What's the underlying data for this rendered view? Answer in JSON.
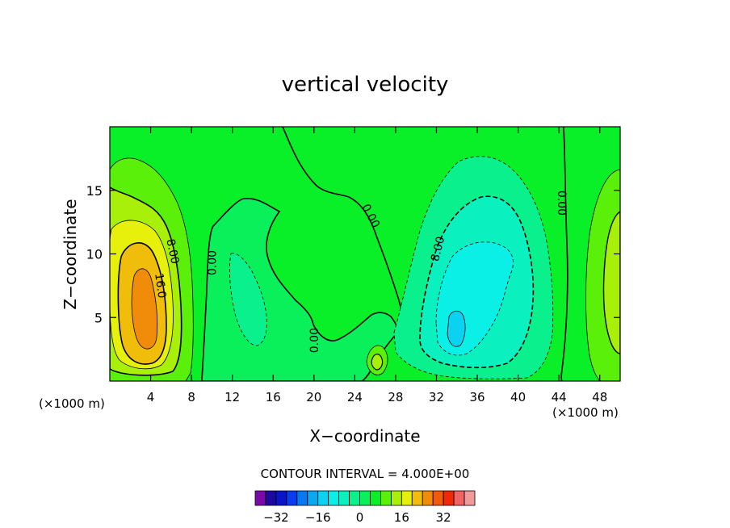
{
  "chart_data": {
    "type": "heatmap",
    "title": "vertical velocity",
    "xlabel": "X−coordinate",
    "ylabel": "Z−coordinate",
    "x_unit_left": "(×1000 m)",
    "x_unit_right": "(×1000 m)",
    "xlim": [
      0,
      50
    ],
    "ylim": [
      0,
      20
    ],
    "x_ticks": [
      {
        "value": 4,
        "label": "4"
      },
      {
        "value": 8,
        "label": "8"
      },
      {
        "value": 12,
        "label": "12"
      },
      {
        "value": 16,
        "label": "16"
      },
      {
        "value": 20,
        "label": "20"
      },
      {
        "value": 24,
        "label": "24"
      },
      {
        "value": 28,
        "label": "28"
      },
      {
        "value": 32,
        "label": "32"
      },
      {
        "value": 36,
        "label": "36"
      },
      {
        "value": 40,
        "label": "40"
      },
      {
        "value": 44,
        "label": "44"
      },
      {
        "value": 48,
        "label": "48"
      }
    ],
    "y_ticks": [
      {
        "value": 5,
        "label": "5"
      },
      {
        "value": 10,
        "label": "10"
      },
      {
        "value": 15,
        "label": "15"
      }
    ],
    "contour_interval_text": "CONTOUR INTERVAL = 4.000E+00",
    "contour_interval": 4,
    "contour_labels": [
      {
        "text": "8.00",
        "x": 6.2,
        "z": 10.2,
        "angle": 78
      },
      {
        "text": "16.0",
        "x": 5.0,
        "z": 7.5,
        "angle": 82
      },
      {
        "text": "0.00",
        "x": 10.0,
        "z": 9.3,
        "angle": -90
      },
      {
        "text": "0.00",
        "x": 20.0,
        "z": 3.2,
        "angle": -90
      },
      {
        "text": "0.00",
        "x": 25.6,
        "z": 13.0,
        "angle": 62
      },
      {
        "text": "8.00",
        "x": 32.1,
        "z": 10.4,
        "angle": -76
      },
      {
        "text": "0.00",
        "x": 44.3,
        "z": 14.0,
        "angle": 90
      }
    ],
    "colorbar": {
      "levels": [
        -36,
        -32,
        -28,
        -24,
        -20,
        -16,
        -12,
        -8,
        -4,
        0,
        4,
        8,
        12,
        16,
        20,
        24,
        28,
        32,
        36
      ],
      "colors": [
        "#7a0aa8",
        "#1c0a9e",
        "#0a14c8",
        "#0a3cf0",
        "#0a78f0",
        "#0aa8f0",
        "#0ad2f0",
        "#0af0e6",
        "#0af0be",
        "#0af08c",
        "#0af05a",
        "#0af028",
        "#5af00a",
        "#a8f00a",
        "#e6f00a",
        "#f0be0a",
        "#f08c0a",
        "#f05a0a",
        "#f0280a",
        "#f06464",
        "#f09a9a"
      ],
      "tick_labels": [
        {
          "value": -32,
          "label": "−32"
        },
        {
          "value": -16,
          "label": "−16"
        },
        {
          "value": 0,
          "label": "0"
        },
        {
          "value": 16,
          "label": "16"
        },
        {
          "value": 32,
          "label": "32"
        }
      ]
    },
    "grid": false,
    "legend": "bottom-center colorbar"
  }
}
